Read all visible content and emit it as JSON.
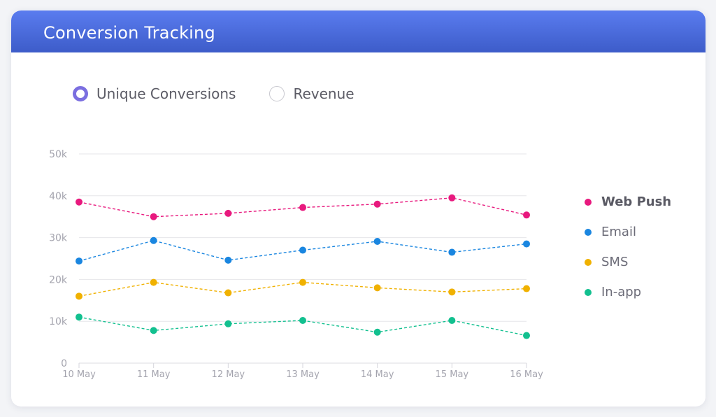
{
  "header": {
    "title": "Conversion Tracking"
  },
  "toggle": {
    "options": [
      {
        "label": "Unique Conversions",
        "selected": true
      },
      {
        "label": "Revenue",
        "selected": false
      }
    ]
  },
  "chart_data": {
    "type": "line",
    "title": "",
    "xlabel": "",
    "ylabel": "",
    "x": [
      "10 May",
      "11 May",
      "12 May",
      "13 May",
      "14 May",
      "15 May",
      "16 May"
    ],
    "yticks": [
      "0",
      "10k",
      "20k",
      "30k",
      "40k",
      "50k"
    ],
    "ylim": [
      0,
      50000
    ],
    "grid": true,
    "legend_position": "right",
    "series": [
      {
        "name": "Web Push",
        "color": "#e8197e",
        "values": [
          38500,
          35000,
          35800,
          37200,
          38000,
          39500,
          35400
        ]
      },
      {
        "name": "Email",
        "color": "#1a86e0",
        "values": [
          24400,
          29300,
          24600,
          27000,
          29100,
          26500,
          28500
        ]
      },
      {
        "name": "SMS",
        "color": "#f0b100",
        "values": [
          16000,
          19300,
          16800,
          19300,
          18000,
          17000,
          17800
        ]
      },
      {
        "name": "In-app",
        "color": "#12c08f",
        "values": [
          11000,
          7800,
          9400,
          10200,
          7400,
          10200,
          6600
        ]
      }
    ],
    "active_series": "Web Push"
  }
}
